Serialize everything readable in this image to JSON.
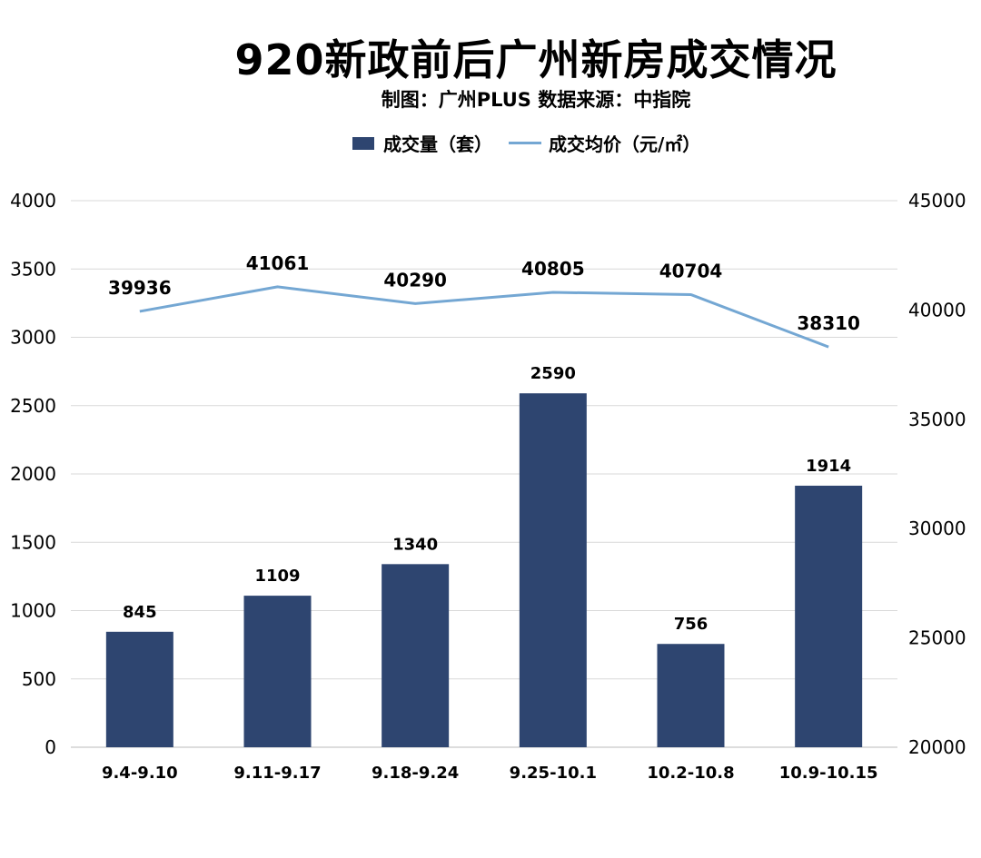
{
  "title": "920新政前后广州新房成交情况",
  "subtitle": "制图：广州PLUS  数据来源：中指院",
  "chart_data": {
    "type": "bar+line",
    "title": "920新政前后广州新房成交情况",
    "categories": [
      "9.4-9.10",
      "9.11-9.17",
      "9.18-9.24",
      "9.25-10.1",
      "10.2-10.8",
      "10.9-10.15"
    ],
    "series": [
      {
        "name": "成交量（套）",
        "type": "bar",
        "axis": "left",
        "color": "#2e4570",
        "values": [
          845,
          1109,
          1340,
          2590,
          756,
          1914
        ]
      },
      {
        "name": "成交均价（元/㎡）",
        "type": "line",
        "axis": "right",
        "color": "#74a7d3",
        "values": [
          39936,
          41061,
          40290,
          40805,
          40704,
          38310
        ]
      }
    ],
    "left_axis": {
      "ylim": [
        0,
        4000
      ],
      "ticks": [
        "0",
        "500",
        "1000",
        "1500",
        "2000",
        "2500",
        "3000",
        "3500",
        "4000"
      ]
    },
    "right_axis": {
      "ylim": [
        20000,
        45000
      ],
      "ticks": [
        "20000",
        "25000",
        "30000",
        "35000",
        "40000",
        "45000"
      ]
    },
    "grid": true,
    "legend": "top"
  }
}
